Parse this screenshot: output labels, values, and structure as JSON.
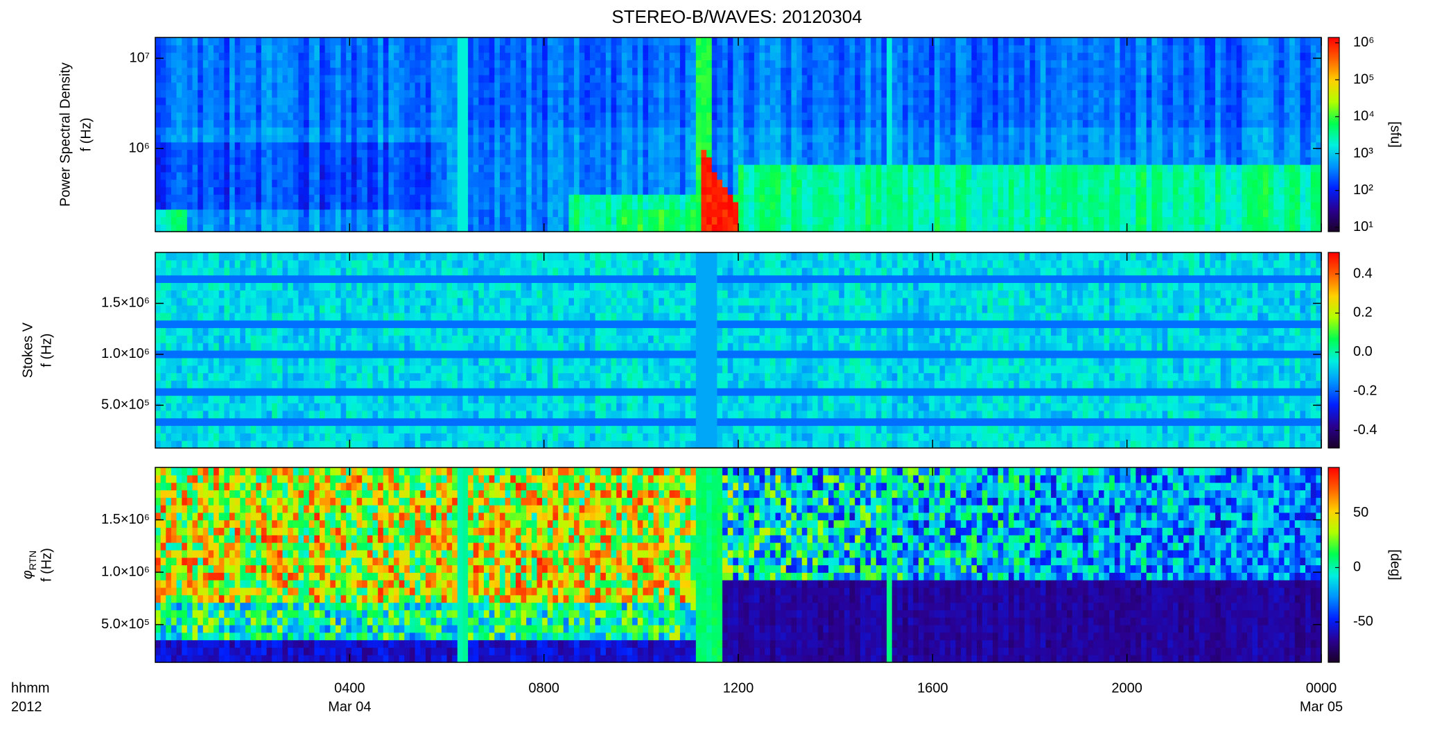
{
  "title": "STEREO-B/WAVES: 20120304",
  "x_axis": {
    "xlim": [
      0,
      24
    ],
    "xticks": [
      {
        "value": 4,
        "label": "0400"
      },
      {
        "value": 8,
        "label": "0800"
      },
      {
        "value": 12,
        "label": "1200"
      },
      {
        "value": 16,
        "label": "1600"
      },
      {
        "value": 20,
        "label": "2000"
      },
      {
        "value": 24,
        "label": "0000"
      }
    ],
    "date_labels": [
      {
        "value": 4,
        "label": "Mar 04"
      },
      {
        "value": 24,
        "label": "Mar 05"
      }
    ],
    "time_label": "hhmm",
    "year_label": "2012"
  },
  "chart_data": [
    {
      "type": "heatmap",
      "ylabel": [
        "Power Spectral Density",
        "f (Hz)"
      ],
      "yscale": "log",
      "ylim": [
        120000,
        17000000
      ],
      "yticks": [
        {
          "value": 1000000,
          "label": "10⁶"
        },
        {
          "value": 10000000,
          "label": "10⁷"
        }
      ],
      "colorbar": {
        "scale": "log",
        "lim": [
          7.7,
          1400000
        ],
        "ticks": [
          {
            "value": 10,
            "label": "10¹"
          },
          {
            "value": 100,
            "label": "10²"
          },
          {
            "value": 1000,
            "label": "10³"
          },
          {
            "value": 10000,
            "label": "10⁴"
          },
          {
            "value": 100000,
            "label": "10⁵"
          },
          {
            "value": 1000000,
            "label": "10⁶"
          }
        ],
        "label": "[sfu]"
      }
    },
    {
      "type": "heatmap",
      "ylabel": [
        "Stokes V",
        "f (Hz)"
      ],
      "yscale": "linear",
      "ylim": [
        80000,
        2000000
      ],
      "yticks": [
        {
          "value": 500000,
          "label": "5.0×10⁵"
        },
        {
          "value": 1000000,
          "label": "1.0×10⁶"
        },
        {
          "value": 1500000,
          "label": "1.5×10⁶"
        }
      ],
      "colorbar": {
        "scale": "linear",
        "lim": [
          -0.49,
          0.51
        ],
        "ticks": [
          -0.4,
          -0.2,
          {
            "value": 0,
            "label": "0.0"
          },
          0.2,
          0.4
        ]
      }
    },
    {
      "type": "heatmap",
      "ylabel": [
        "f (Hz)"
      ],
      "ylabel_symbol": "φ",
      "ylabel_subscript": "RTN",
      "yscale": "linear",
      "ylim": [
        140000,
        2000000
      ],
      "yticks": [
        {
          "value": 500000,
          "label": "5.0×10⁵"
        },
        {
          "value": 1000000,
          "label": "1.0×10⁶"
        },
        {
          "value": 1500000,
          "label": "1.5×10⁶"
        }
      ],
      "colorbar": {
        "scale": "linear",
        "lim": [
          -87,
          92
        ],
        "ticks": [
          -50,
          0,
          50
        ],
        "label": "[deg]"
      }
    }
  ],
  "colorscale": [
    "#1a0028",
    "#2a0090",
    "#0020ff",
    "#0090ff",
    "#00f0e0",
    "#00ff50",
    "#b0ff00",
    "#ffd000",
    "#ff6000",
    "#ff0000"
  ]
}
